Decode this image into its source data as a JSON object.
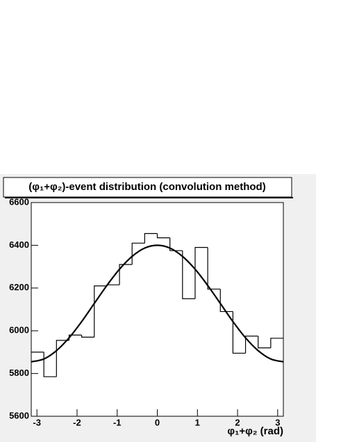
{
  "chart_data": {
    "type": "histogram",
    "title": "(φ₁+φ₂)-event distribution (convolution method)",
    "x_label": "φ₁+φ₂ (rad)",
    "bins": [
      -3.1416,
      -2.8274,
      -2.5133,
      -2.1991,
      -1.885,
      -1.5708,
      -1.2566,
      -0.9425,
      -0.6283,
      -0.3142,
      0,
      0.3142,
      0.6283,
      0.9425,
      1.2566,
      1.5708,
      1.885,
      2.1991,
      2.5133,
      2.8274,
      3.1416
    ],
    "counts": [
      5900,
      5785,
      5955,
      5980,
      5970,
      6210,
      6215,
      6310,
      6410,
      6455,
      6435,
      6375,
      6150,
      6390,
      6195,
      6090,
      5895,
      5975,
      5920,
      5965
    ],
    "color": "#000000",
    "fit": {
      "color": "#000000",
      "x": [
        -3.1416,
        -2.8274,
        -2.5133,
        -2.1991,
        -1.885,
        -1.5708,
        -1.2566,
        -0.9425,
        -0.6283,
        -0.3142,
        0,
        0.3142,
        0.6283,
        0.9425,
        1.2566,
        1.5708,
        1.885,
        2.1991,
        2.5133,
        2.8274,
        3.1416
      ],
      "values": [
        5855,
        5868,
        5907,
        5967,
        6043,
        6128,
        6212,
        6288,
        6348,
        6387,
        6400,
        6387,
        6348,
        6288,
        6212,
        6128,
        6043,
        5967,
        5907,
        5868,
        5855
      ]
    },
    "xlim": [
      -3.1416,
      3.1416
    ],
    "ylim": [
      5600,
      6600
    ],
    "xticks": [
      -3,
      -2,
      -1,
      0,
      1,
      2,
      3
    ],
    "yticks": [
      5600,
      5800,
      6000,
      6200,
      6400,
      6600
    ],
    "grid": false
  }
}
